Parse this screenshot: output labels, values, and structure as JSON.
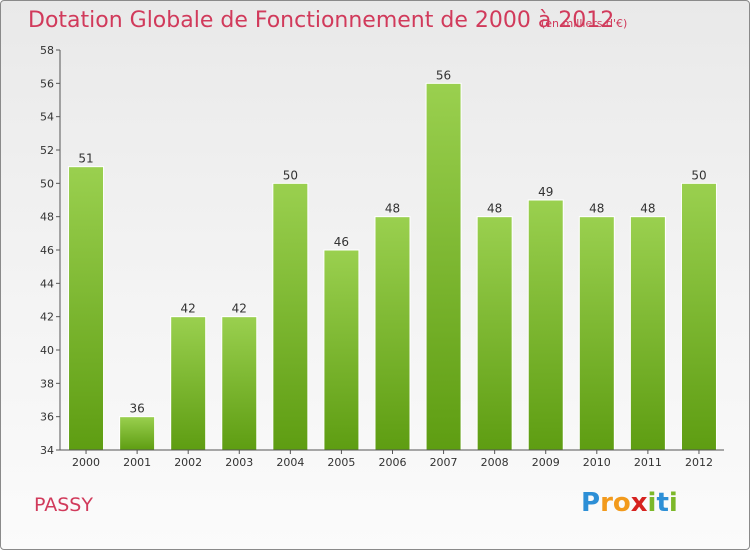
{
  "header": {
    "title": "Dotation Globale de Fonctionnement de 2000 à 2012",
    "unit_note": "(en milliers d'€)"
  },
  "footer": {
    "commune": "PASSY",
    "logo_text": "Proxiti"
  },
  "colors": {
    "title": "#d13a5b",
    "bar_top": "#9ad04f",
    "bar_bottom": "#5e9d12",
    "axis": "#555555"
  },
  "chart_data": {
    "type": "bar",
    "categories": [
      "2000",
      "2001",
      "2002",
      "2003",
      "2004",
      "2005",
      "2006",
      "2007",
      "2008",
      "2009",
      "2010",
      "2011",
      "2012"
    ],
    "values": [
      51,
      36,
      42,
      42,
      50,
      46,
      48,
      56,
      48,
      49,
      48,
      48,
      50
    ],
    "ylim": [
      34,
      58
    ],
    "yticks": [
      34,
      36,
      38,
      40,
      42,
      44,
      46,
      48,
      50,
      52,
      54,
      56,
      58
    ],
    "grid": false,
    "legend": "none"
  }
}
